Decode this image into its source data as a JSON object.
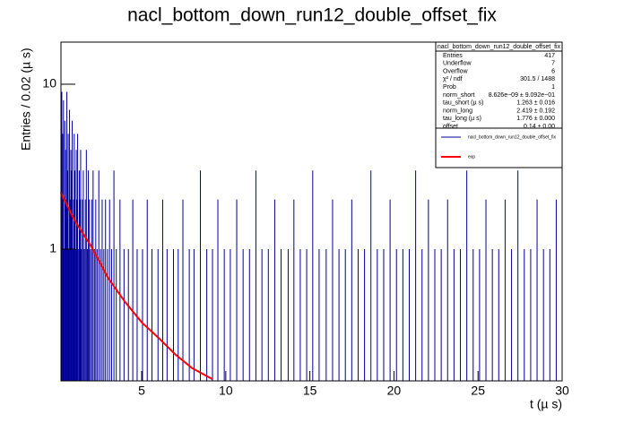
{
  "chart_data": {
    "type": "histogram",
    "title": "nacl_bottom_down_run12_double_offset_fix",
    "x_label": "t (µ s)",
    "y_label": "Entries / 0.02 (µ s)",
    "logy": true,
    "xlim": [
      0.2,
      30
    ],
    "ylim": [
      0.159,
      18
    ],
    "xticks": [
      5,
      10,
      15,
      20,
      25,
      30
    ],
    "yticks": [
      1,
      10
    ],
    "series": [
      {
        "name": "nacl_bottom_down_run12_double_offset_fix",
        "type": "histogram",
        "color": "#000099",
        "x": [
          0.21,
          0.25,
          0.29,
          0.31,
          0.35,
          0.39,
          0.43,
          0.47,
          0.51,
          0.55,
          0.59,
          0.63,
          0.67,
          0.71,
          0.75,
          0.79,
          0.83,
          0.87,
          0.91,
          0.95,
          0.99,
          1.03,
          1.07,
          1.11,
          1.15,
          1.19,
          1.23,
          1.29,
          1.33,
          1.37,
          1.41,
          1.47,
          1.53,
          1.59,
          1.65,
          1.71,
          1.77,
          1.83,
          1.89,
          1.95,
          2.03,
          2.11,
          2.19,
          2.27,
          2.35,
          2.45,
          2.55,
          2.65,
          2.75,
          2.85,
          2.97,
          3.09,
          3.21,
          3.35,
          3.49,
          3.71,
          3.95,
          4.21,
          4.47,
          4.73,
          5.05,
          5.33,
          5.61,
          5.97,
          6.25,
          6.51,
          6.89,
          7.17,
          7.45,
          7.83,
          8.11,
          8.49,
          8.87,
          9.21,
          9.53,
          9.91,
          10.27,
          10.65,
          11.03,
          11.41,
          11.79,
          12.15,
          12.53,
          12.91,
          13.29,
          13.71,
          14.05,
          14.43,
          14.81,
          15.17,
          15.55,
          15.97,
          16.35,
          16.73,
          17.11,
          17.49,
          17.87,
          18.25,
          18.63,
          19.01,
          19.39,
          19.77,
          20.15,
          20.53,
          20.91,
          21.29,
          21.67,
          22.05,
          22.43,
          22.81,
          23.19,
          23.57,
          23.95,
          24.33,
          24.71,
          25.09,
          25.47,
          25.85,
          26.23,
          26.61,
          26.99,
          27.37,
          27.75,
          28.13,
          28.51,
          28.89,
          29.27,
          29.65
        ],
        "values": [
          3,
          9,
          2,
          5,
          8,
          1,
          6,
          4,
          2,
          9,
          3,
          5,
          1,
          7,
          2,
          4,
          3,
          6,
          1,
          2,
          5,
          3,
          1,
          4,
          2,
          5,
          1,
          3,
          2,
          4,
          1,
          2,
          3,
          1,
          2,
          4,
          1,
          3,
          2,
          1,
          2,
          3,
          1,
          2,
          1,
          3,
          1,
          2,
          1,
          2,
          1,
          2,
          1,
          3,
          1,
          2,
          1,
          1,
          2,
          1,
          1,
          2,
          1,
          1,
          2,
          1,
          1,
          1,
          2,
          1,
          1,
          3,
          1,
          1,
          2,
          1,
          1,
          2,
          1,
          1,
          3,
          1,
          1,
          2,
          1,
          1,
          2,
          1,
          1,
          3,
          1,
          1,
          2,
          1,
          1,
          2,
          1,
          1,
          3,
          1,
          1,
          2,
          1,
          1,
          1,
          3,
          1,
          2,
          1,
          1,
          2,
          1,
          1,
          3,
          1,
          1,
          2,
          1,
          1,
          2,
          1,
          3,
          1,
          1,
          2,
          1,
          1,
          2
        ]
      },
      {
        "name": "exp",
        "type": "line",
        "color": "#ff0000",
        "x": [
          0.2,
          1,
          2,
          3,
          4,
          5,
          6,
          7,
          8,
          9.2
        ],
        "values": [
          2.2,
          1.5,
          1.04,
          0.67,
          0.48,
          0.36,
          0.29,
          0.23,
          0.19,
          0.163
        ]
      }
    ],
    "stats": {
      "title": "nacl_bottom_down_run12_double_offset_fix",
      "rows": [
        [
          "Entries",
          "417"
        ],
        [
          "Underflow",
          "7"
        ],
        [
          "Overflow",
          "6"
        ],
        [
          "χ² / ndf",
          "301.5 / 1488"
        ],
        [
          "Prob",
          "1"
        ],
        [
          "norm_short",
          "8.626e−09 ± 9.092e−01"
        ],
        [
          "tau_short (µ s)",
          "1.263 ± 0.016"
        ],
        [
          "norm_long",
          "2.419 ± 0.192"
        ],
        [
          "tau_long (µ s)",
          "1.776 ± 0.000"
        ],
        [
          "offset",
          "0.14 ± 0.00"
        ]
      ]
    }
  }
}
